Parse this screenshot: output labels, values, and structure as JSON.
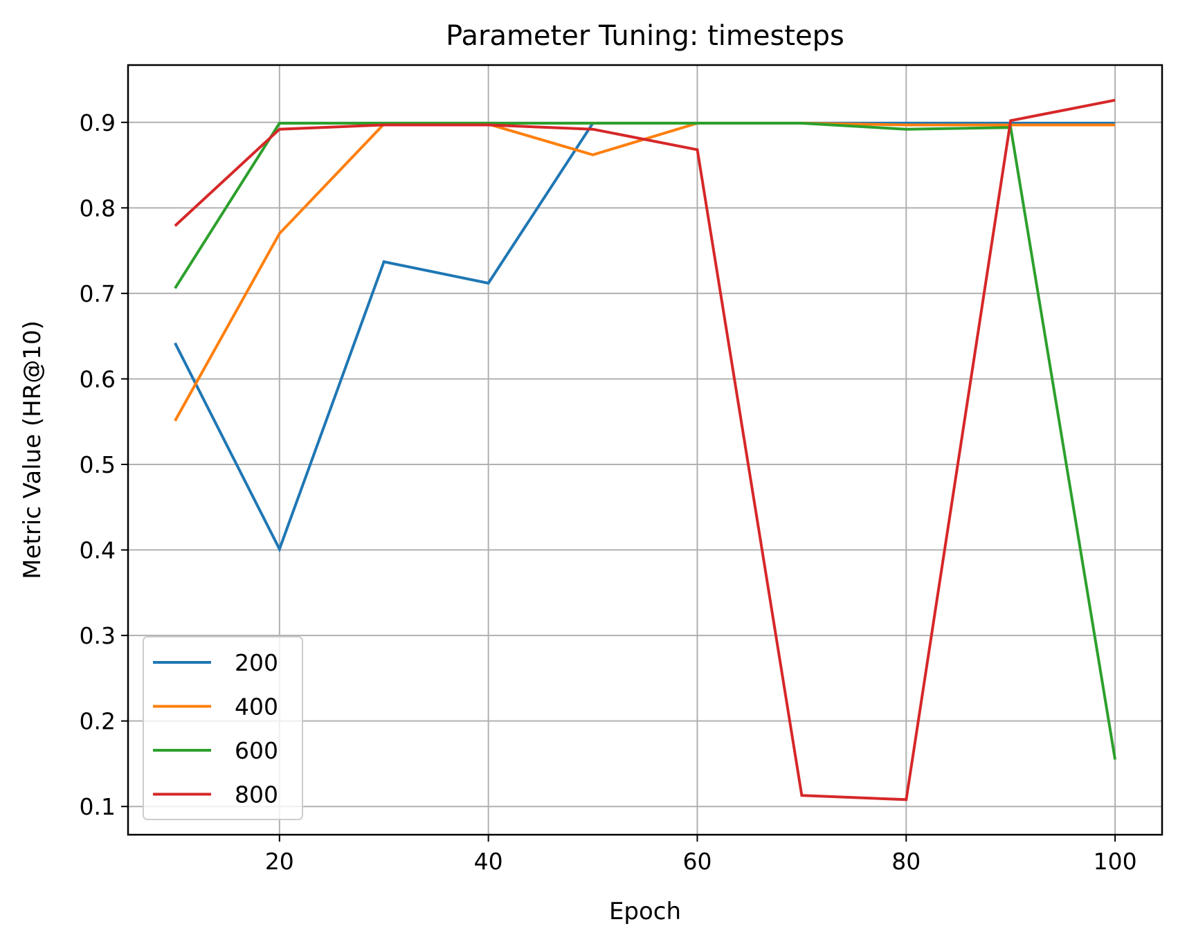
{
  "chart_data": {
    "type": "line",
    "title": "Parameter Tuning: timesteps",
    "xlabel": "Epoch",
    "ylabel": "Metric Value (HR@10)",
    "xlim": [
      5.5,
      104.5
    ],
    "ylim": [
      0.067,
      0.967
    ],
    "xticks": [
      20,
      40,
      60,
      80,
      100
    ],
    "yticks": [
      0.1,
      0.2,
      0.3,
      0.4,
      0.5,
      0.6,
      0.7,
      0.8,
      0.9
    ],
    "grid": true,
    "legend_position": "lower-left",
    "x": [
      10,
      20,
      30,
      40,
      50,
      60,
      70,
      80,
      90,
      100
    ],
    "series": [
      {
        "name": "200",
        "color": "#1f77b4",
        "values": [
          0.642,
          0.401,
          0.737,
          0.712,
          0.899,
          0.899,
          0.899,
          0.899,
          0.899,
          0.899
        ]
      },
      {
        "name": "400",
        "color": "#ff7f0e",
        "values": [
          0.551,
          0.77,
          0.898,
          0.898,
          0.862,
          0.899,
          0.899,
          0.897,
          0.897,
          0.897
        ]
      },
      {
        "name": "600",
        "color": "#2ca02c",
        "values": [
          0.706,
          0.899,
          0.899,
          0.899,
          0.899,
          0.899,
          0.899,
          0.892,
          0.894,
          0.155
        ]
      },
      {
        "name": "800",
        "color": "#d62728",
        "values": [
          0.779,
          0.892,
          0.897,
          0.897,
          0.892,
          0.868,
          0.113,
          0.108,
          0.902,
          0.926
        ]
      }
    ]
  }
}
